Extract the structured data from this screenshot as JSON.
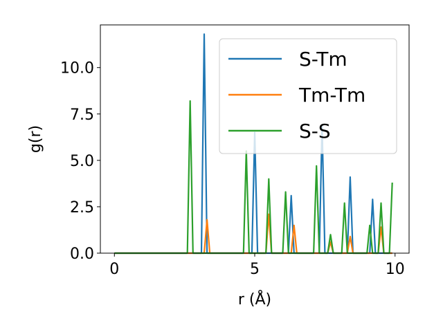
{
  "chart_data": {
    "type": "line",
    "xlabel": "r (Å)",
    "ylabel": "g(r)",
    "xlim": [
      -0.5,
      10.5
    ],
    "ylim": [
      0,
      12.3
    ],
    "xticks": [
      0,
      5,
      10
    ],
    "yticks": [
      0.0,
      2.5,
      5.0,
      7.5,
      10.0
    ],
    "xtick_labels": [
      "0",
      "5",
      "10"
    ],
    "ytick_labels": [
      "0.0",
      "2.5",
      "5.0",
      "7.5",
      "10.0"
    ],
    "grid": false,
    "legend_position": "top-right",
    "series": [
      {
        "name": "S-Tm",
        "color": "#1f77b4",
        "x": [
          0.0,
          3.1,
          3.2,
          3.3,
          3.4,
          4.9,
          5.0,
          5.1,
          6.2,
          6.3,
          6.4,
          7.3,
          7.4,
          7.5,
          8.3,
          8.4,
          8.5,
          9.1,
          9.2,
          9.3,
          9.9
        ],
        "y": [
          0,
          0,
          11.8,
          0,
          0,
          0,
          6.5,
          0,
          0,
          3.1,
          0,
          0,
          6.9,
          0,
          0,
          4.1,
          0,
          0,
          2.9,
          0,
          0
        ]
      },
      {
        "name": "Tm-Tm",
        "color": "#ff7f0e",
        "x": [
          0.0,
          3.2,
          3.3,
          3.4,
          5.4,
          5.5,
          5.6,
          6.3,
          6.4,
          6.5,
          7.6,
          7.7,
          7.8,
          8.3,
          8.4,
          8.5,
          9.4,
          9.5,
          9.6,
          9.9
        ],
        "y": [
          0,
          0,
          1.8,
          0,
          0,
          2.1,
          0,
          0,
          1.5,
          0,
          0,
          0.6,
          0,
          0,
          0.9,
          0,
          0,
          1.4,
          0,
          0
        ]
      },
      {
        "name": "S-S",
        "color": "#2ca02c",
        "x": [
          0.0,
          2.6,
          2.7,
          2.8,
          4.6,
          4.7,
          4.8,
          5.4,
          5.5,
          5.6,
          6.0,
          6.1,
          6.2,
          7.1,
          7.2,
          7.3,
          7.6,
          7.7,
          7.8,
          8.1,
          8.2,
          8.3,
          9.0,
          9.1,
          9.2,
          9.4,
          9.5,
          9.6,
          9.8,
          9.9
        ],
        "y": [
          0,
          0,
          8.2,
          0,
          0,
          5.5,
          0,
          0,
          4.0,
          0,
          0,
          3.3,
          0,
          0,
          4.7,
          0,
          0,
          1.0,
          0,
          0,
          2.7,
          0,
          0,
          1.5,
          0,
          0,
          2.7,
          0,
          0,
          3.8
        ]
      }
    ]
  }
}
